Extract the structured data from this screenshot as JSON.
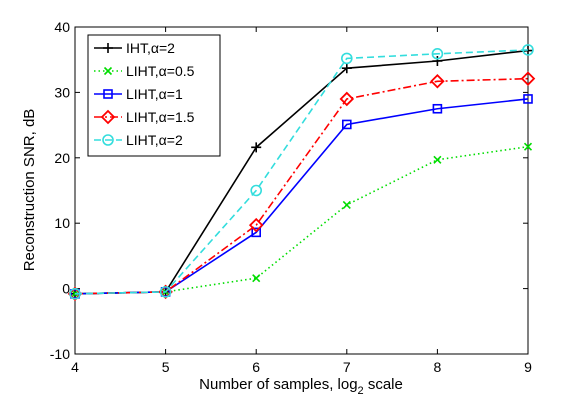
{
  "chart_data": {
    "type": "line",
    "title": "",
    "xlabel": "Number of samples, log",
    "xlabel_subscript": "2",
    "xlabel_suffix": " scale",
    "ylabel": "Reconstruction SNR, dB",
    "x": [
      4,
      5,
      6,
      7,
      8,
      9
    ],
    "xlim": [
      4,
      9
    ],
    "ylim": [
      -10,
      40
    ],
    "xticks": [
      4,
      5,
      6,
      7,
      8,
      9
    ],
    "yticks": [
      -10,
      0,
      10,
      20,
      30,
      40
    ],
    "grid": false,
    "legend_position": "top-left",
    "series": [
      {
        "name": "IHT,α=2",
        "color": "#000000",
        "dash": "solid",
        "marker": "plus",
        "values": [
          -0.8,
          -0.5,
          21.6,
          33.7,
          34.8,
          36.4
        ]
      },
      {
        "name": "LIHT,α=0.5",
        "color": "#00dd00",
        "dash": "dotted",
        "marker": "x",
        "values": [
          -0.8,
          -0.5,
          1.6,
          12.8,
          19.7,
          21.7
        ]
      },
      {
        "name": "LIHT,α=1",
        "color": "#0000ff",
        "dash": "solid",
        "marker": "square",
        "values": [
          -0.8,
          -0.5,
          8.6,
          25.1,
          27.5,
          29.0
        ]
      },
      {
        "name": "LIHT,α=1.5",
        "color": "#ff0000",
        "dash": "dashdot",
        "marker": "diamond",
        "values": [
          -0.8,
          -0.5,
          9.7,
          29.0,
          31.7,
          32.1
        ]
      },
      {
        "name": "LIHT,α=2",
        "color": "#33dddd",
        "dash": "dashed",
        "marker": "circle",
        "values": [
          -0.8,
          -0.5,
          15.0,
          35.2,
          35.9,
          36.5
        ]
      }
    ]
  }
}
